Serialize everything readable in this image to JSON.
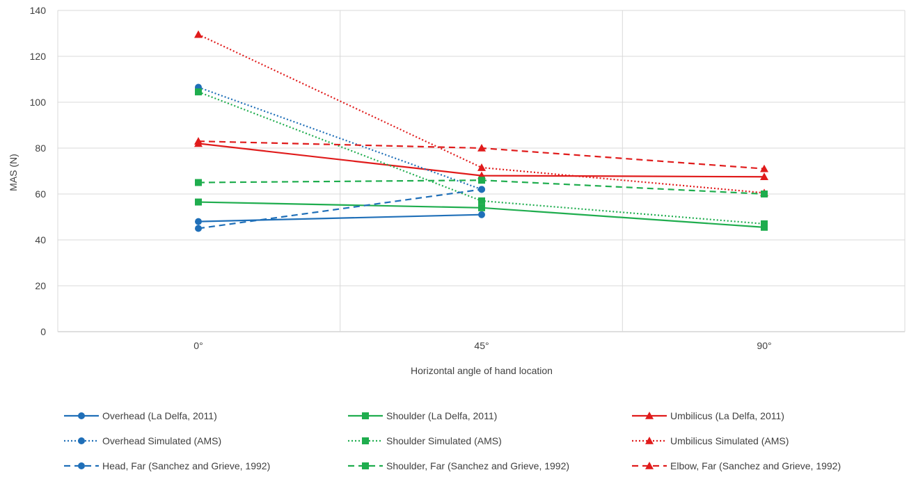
{
  "chart_data": {
    "type": "line",
    "title": "",
    "xlabel": "Horizontal angle of hand location",
    "ylabel": "MAS (N)",
    "categories": [
      "0°",
      "45°",
      "90°"
    ],
    "ylim": [
      0,
      140
    ],
    "yticks": [
      0,
      20,
      40,
      60,
      80,
      100,
      120,
      140
    ],
    "grid": true,
    "legend_position": "bottom",
    "colors": {
      "blue": "#1f6fb8",
      "green": "#1fad4e",
      "red": "#e01b1b",
      "grid": "#d9d9d9"
    },
    "series": [
      {
        "name": "Overhead (La Delfa, 2011)",
        "color": "#1f6fb8",
        "dash": "solid",
        "marker": "circle",
        "values": [
          48,
          51,
          null
        ]
      },
      {
        "name": "Shoulder (La Delfa, 2011)",
        "color": "#1fad4e",
        "dash": "solid",
        "marker": "square",
        "values": [
          56.5,
          54,
          45.5
        ]
      },
      {
        "name": "Umbilicus (La Delfa, 2011)",
        "color": "#e01b1b",
        "dash": "solid",
        "marker": "triangle",
        "values": [
          82,
          68,
          67.5
        ]
      },
      {
        "name": "Overhead Simulated (AMS)",
        "color": "#1f6fb8",
        "dash": "dotted",
        "marker": "circle",
        "values": [
          106.5,
          62,
          null
        ]
      },
      {
        "name": "Shoulder Simulated (AMS)",
        "color": "#1fad4e",
        "dash": "dotted",
        "marker": "square",
        "values": [
          104.5,
          57,
          47
        ]
      },
      {
        "name": "Umbilicus Simulated (AMS)",
        "color": "#e01b1b",
        "dash": "dotted",
        "marker": "triangle",
        "values": [
          129.5,
          71.5,
          60.5
        ]
      },
      {
        "name": "Head, Far (Sanchez and Grieve, 1992)",
        "color": "#1f6fb8",
        "dash": "dashed",
        "marker": "circle",
        "values": [
          45,
          62,
          null
        ]
      },
      {
        "name": "Shoulder, Far (Sanchez and Grieve, 1992)",
        "color": "#1fad4e",
        "dash": "dashed",
        "marker": "square",
        "values": [
          65,
          66,
          60
        ]
      },
      {
        "name": "Elbow, Far (Sanchez and Grieve, 1992)",
        "color": "#e01b1b",
        "dash": "dashed",
        "marker": "triangle",
        "values": [
          83,
          80,
          71
        ]
      }
    ]
  }
}
